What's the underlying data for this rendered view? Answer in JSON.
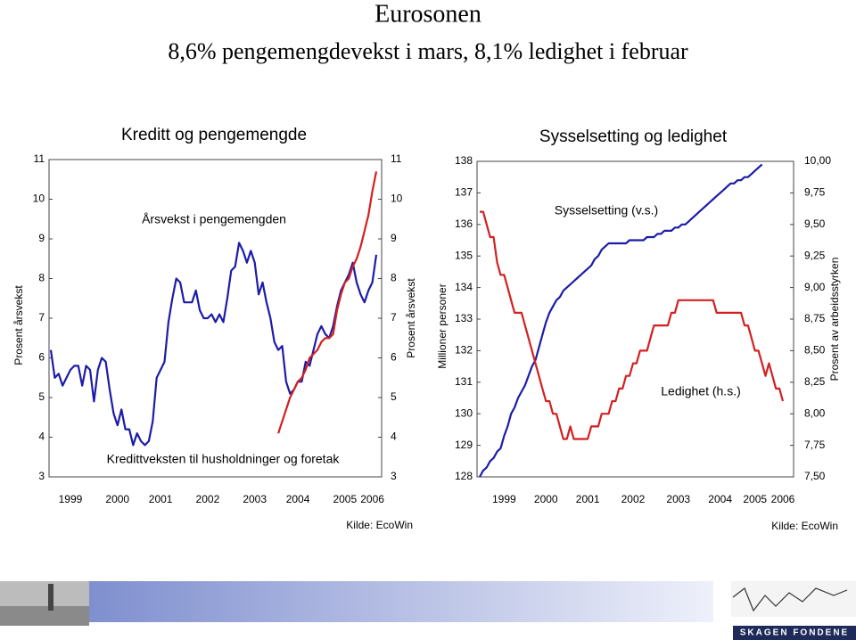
{
  "page": {
    "title": "Eurosonen",
    "subtitle": "8,6% pengemengdevekst i mars, 8,1% ledighet i februar"
  },
  "footer": {
    "logo": "SKAGEN FONDENE"
  },
  "chart_data": [
    {
      "type": "line",
      "title": "Kreditt og pengemengde",
      "y_label": "Prosent årsvekst",
      "y2_label": "Prosent årsvekst",
      "annotations": [
        "Årsvekst i pengemengden",
        "Kredittveksten til husholdninger og foretak"
      ],
      "source": "Kilde: EcoWin",
      "categories": [
        null,
        null,
        null,
        null,
        null,
        "1999",
        null,
        null,
        null,
        null,
        null,
        null,
        null,
        null,
        null,
        null,
        null,
        "2000",
        null,
        null,
        null,
        null,
        null,
        null,
        null,
        null,
        null,
        null,
        "2001",
        null,
        null,
        null,
        null,
        null,
        null,
        null,
        null,
        null,
        null,
        null,
        "2002",
        null,
        null,
        null,
        null,
        null,
        null,
        null,
        null,
        null,
        null,
        null,
        "2003",
        null,
        null,
        null,
        null,
        null,
        null,
        null,
        null,
        null,
        null,
        "2004",
        null,
        null,
        null,
        null,
        null,
        null,
        null,
        null,
        null,
        null,
        null,
        "2005",
        null,
        null,
        null,
        null,
        null,
        null,
        "2006",
        null
      ],
      "series": [
        {
          "color": "#1c1ca8",
          "axis": "y",
          "values": [
            6.2,
            5.5,
            5.6,
            5.3,
            5.5,
            5.7,
            5.8,
            5.8,
            5.3,
            5.8,
            5.7,
            4.9,
            5.7,
            6.0,
            5.9,
            5.2,
            4.6,
            4.3,
            4.7,
            4.2,
            4.2,
            3.8,
            4.1,
            3.9,
            3.8,
            3.9,
            4.4,
            5.5,
            5.7,
            5.9,
            6.9,
            7.5,
            8.0,
            7.9,
            7.4,
            7.4,
            7.4,
            7.7,
            7.2,
            7.0,
            7.0,
            7.1,
            6.9,
            7.1,
            6.9,
            7.5,
            8.2,
            8.3,
            8.9,
            8.7,
            8.4,
            8.7,
            8.4,
            7.6,
            7.9,
            7.4,
            7.0,
            6.4,
            6.2,
            6.3,
            5.4,
            5.1,
            5.2,
            5.4,
            5.4,
            5.9,
            5.8,
            6.2,
            6.6,
            6.8,
            6.6,
            6.5,
            6.8,
            7.3,
            7.7,
            7.9,
            8.1,
            8.4,
            7.9,
            7.6,
            7.4,
            7.7,
            7.9,
            8.6
          ]
        },
        {
          "color": "#d42020",
          "axis": "y",
          "values": [
            null,
            null,
            null,
            null,
            null,
            null,
            null,
            null,
            null,
            null,
            null,
            null,
            null,
            null,
            null,
            null,
            null,
            null,
            null,
            null,
            null,
            null,
            null,
            null,
            null,
            null,
            null,
            null,
            null,
            null,
            null,
            null,
            null,
            null,
            null,
            null,
            null,
            null,
            null,
            null,
            null,
            null,
            null,
            null,
            null,
            null,
            null,
            null,
            null,
            null,
            null,
            null,
            null,
            null,
            null,
            null,
            null,
            null,
            4.1,
            4.4,
            4.7,
            5.0,
            5.2,
            5.4,
            5.5,
            5.7,
            6.0,
            6.1,
            6.2,
            6.4,
            6.5,
            6.5,
            6.6,
            7.2,
            7.6,
            7.9,
            8.0,
            8.3,
            8.5,
            8.8,
            9.2,
            9.6,
            10.2,
            10.7
          ]
        }
      ],
      "ylim": [
        3,
        11
      ],
      "yticks": [
        3,
        4,
        5,
        6,
        7,
        8,
        9,
        10,
        11
      ],
      "y2lim": [
        3,
        11
      ],
      "y2ticks": [
        3,
        4,
        5,
        6,
        7,
        8,
        9,
        10,
        11
      ]
    },
    {
      "type": "line",
      "title": "Sysselsetting og ledighet",
      "y_label": "Millioner personer",
      "y2_label": "Prosent av arbeidsstyrken",
      "annotations": [
        "Sysselsetting (v.s.)",
        "Ledighet (h.s.)"
      ],
      "source": "Kilde: EcoWin",
      "categories": [
        null,
        null,
        null,
        null,
        null,
        null,
        null,
        "1999",
        null,
        null,
        null,
        null,
        null,
        null,
        null,
        null,
        null,
        null,
        null,
        "2000",
        null,
        null,
        null,
        null,
        null,
        null,
        null,
        null,
        null,
        null,
        null,
        "2001",
        null,
        null,
        null,
        null,
        null,
        null,
        null,
        null,
        null,
        null,
        null,
        null,
        "2002",
        null,
        null,
        null,
        null,
        null,
        null,
        null,
        null,
        null,
        null,
        null,
        null,
        "2003",
        null,
        null,
        null,
        null,
        null,
        null,
        null,
        null,
        null,
        null,
        null,
        "2004",
        null,
        null,
        null,
        null,
        null,
        null,
        null,
        null,
        null,
        "2005",
        null,
        null,
        null,
        null,
        null,
        null,
        null,
        "2006"
      ],
      "series": [
        {
          "color": "#1c1ca8",
          "axis": "y",
          "values": [
            128.0,
            128.2,
            128.3,
            128.5,
            128.6,
            128.8,
            128.9,
            129.3,
            129.6,
            130.0,
            130.2,
            130.5,
            130.7,
            130.9,
            131.2,
            131.5,
            131.7,
            132.1,
            132.5,
            132.9,
            133.2,
            133.4,
            133.6,
            133.7,
            133.9,
            134.0,
            134.1,
            134.2,
            134.3,
            134.4,
            134.5,
            134.6,
            134.7,
            134.9,
            135.0,
            135.2,
            135.3,
            135.4,
            135.4,
            135.4,
            135.4,
            135.4,
            135.4,
            135.5,
            135.5,
            135.5,
            135.5,
            135.5,
            135.6,
            135.6,
            135.6,
            135.7,
            135.7,
            135.8,
            135.8,
            135.8,
            135.9,
            135.9,
            136.0,
            136.0,
            136.1,
            136.2,
            136.3,
            136.4,
            136.5,
            136.6,
            136.7,
            136.8,
            136.9,
            137.0,
            137.1,
            137.2,
            137.3,
            137.3,
            137.4,
            137.4,
            137.5,
            137.5,
            137.6,
            137.7,
            137.8,
            137.9,
            null,
            null,
            null,
            null,
            null,
            null
          ]
        },
        {
          "color": "#d42020",
          "axis": "y2",
          "values": [
            9.6,
            9.6,
            9.5,
            9.4,
            9.4,
            9.2,
            9.1,
            9.1,
            9.0,
            8.9,
            8.8,
            8.8,
            8.8,
            8.7,
            8.6,
            8.5,
            8.4,
            8.3,
            8.2,
            8.1,
            8.1,
            8.0,
            8.0,
            7.9,
            7.8,
            7.8,
            7.9,
            7.8,
            7.8,
            7.8,
            7.8,
            7.8,
            7.9,
            7.9,
            7.9,
            8.0,
            8.0,
            8.0,
            8.1,
            8.1,
            8.2,
            8.2,
            8.3,
            8.3,
            8.4,
            8.4,
            8.5,
            8.5,
            8.5,
            8.6,
            8.7,
            8.7,
            8.7,
            8.7,
            8.7,
            8.8,
            8.8,
            8.9,
            8.9,
            8.9,
            8.9,
            8.9,
            8.9,
            8.9,
            8.9,
            8.9,
            8.9,
            8.9,
            8.8,
            8.8,
            8.8,
            8.8,
            8.8,
            8.8,
            8.8,
            8.8,
            8.7,
            8.7,
            8.6,
            8.5,
            8.5,
            8.4,
            8.3,
            8.4,
            8.3,
            8.2,
            8.2,
            8.1
          ]
        }
      ],
      "ylim": [
        128,
        138
      ],
      "yticks": [
        128,
        129,
        130,
        131,
        132,
        133,
        134,
        135,
        136,
        137,
        138
      ],
      "y2lim": [
        7.5,
        10
      ],
      "y2ticks": [
        {
          "value": 7.5,
          "label": "7,50"
        },
        {
          "value": 7.75,
          "label": "7,75"
        },
        {
          "value": 8,
          "label": "8,00"
        },
        {
          "value": 8.25,
          "label": "8,25"
        },
        {
          "value": 8.5,
          "label": "8,50"
        },
        {
          "value": 8.75,
          "label": "8,75"
        },
        {
          "value": 9,
          "label": "9,00"
        },
        {
          "value": 9.25,
          "label": "9,25"
        },
        {
          "value": 9.5,
          "label": "9,50"
        },
        {
          "value": 9.75,
          "label": "9,75"
        },
        {
          "value": 10,
          "label": "10,00"
        }
      ]
    }
  ]
}
